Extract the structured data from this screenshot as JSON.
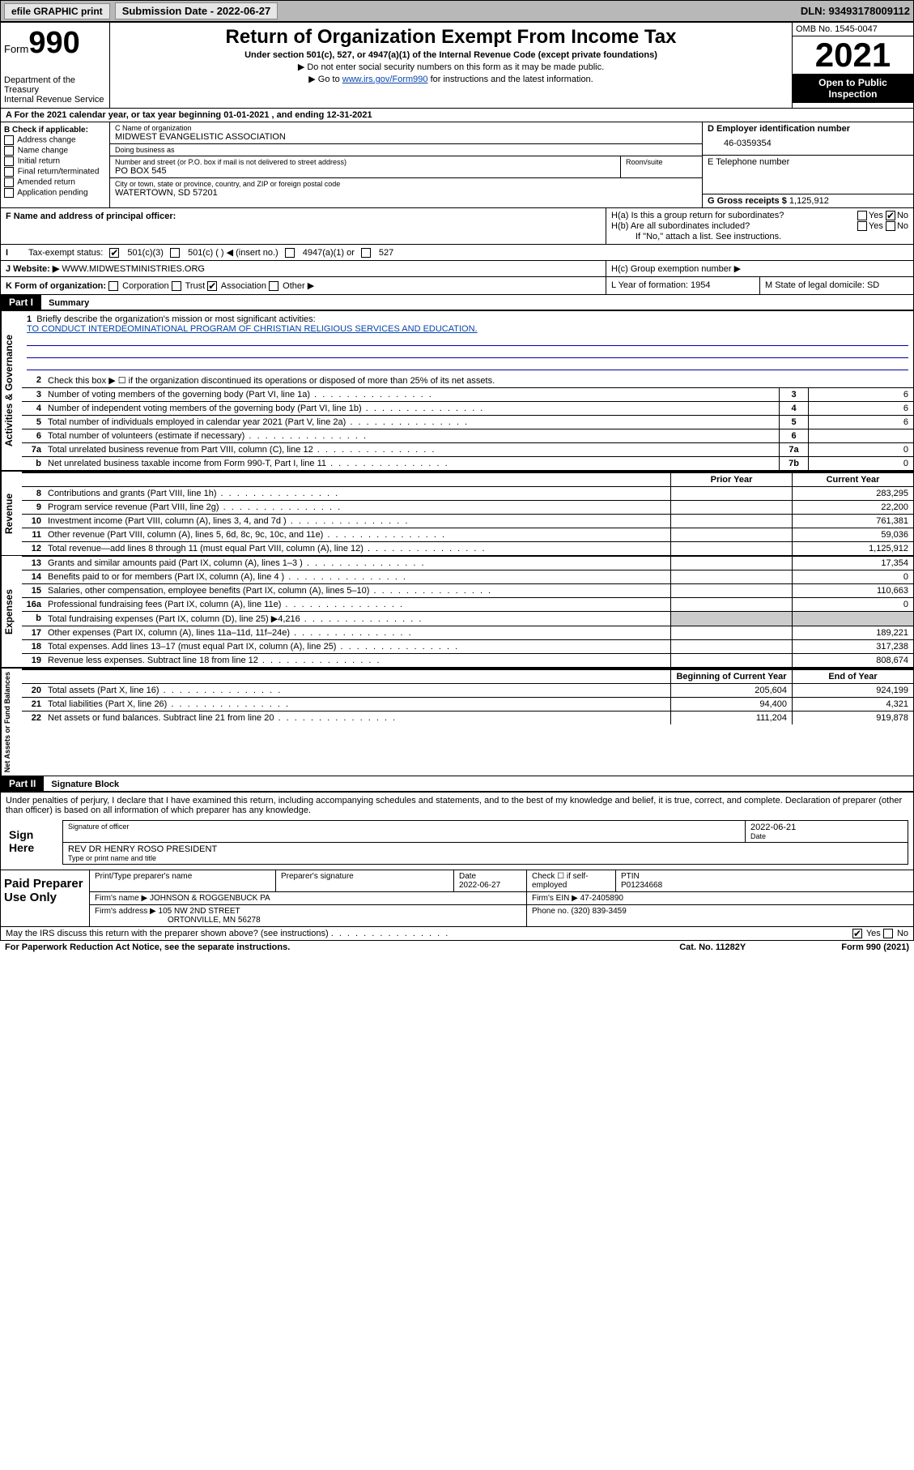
{
  "topbar": {
    "efile": "efile GRAPHIC print",
    "subdate_label": "Submission Date - 2022-06-27",
    "dln": "DLN: 93493178009112"
  },
  "header": {
    "form_label": "Form",
    "form_number": "990",
    "dept": "Department of the Treasury",
    "irs": "Internal Revenue Service",
    "title": "Return of Organization Exempt From Income Tax",
    "subtitle": "Under section 501(c), 527, or 4947(a)(1) of the Internal Revenue Code (except private foundations)",
    "note1": "▶ Do not enter social security numbers on this form as it may be made public.",
    "note2_pre": "▶ Go to ",
    "note2_link": "www.irs.gov/Form990",
    "note2_post": " for instructions and the latest information.",
    "omb": "OMB No. 1545-0047",
    "year": "2021",
    "open": "Open to Public Inspection"
  },
  "line_a": "A For the 2021 calendar year, or tax year beginning 01-01-2021   , and ending 12-31-2021",
  "col_b": {
    "title": "B Check if applicable:",
    "items": [
      "Address change",
      "Name change",
      "Initial return",
      "Final return/terminated",
      "Amended return",
      "Application pending"
    ]
  },
  "org": {
    "name_label": "C Name of organization",
    "name": "MIDWEST EVANGELISTIC ASSOCIATION",
    "dba_label": "Doing business as",
    "dba": "",
    "addr_label": "Number and street (or P.O. box if mail is not delivered to street address)",
    "addr": "PO BOX 545",
    "room_label": "Room/suite",
    "city_label": "City or town, state or province, country, and ZIP or foreign postal code",
    "city": "WATERTOWN, SD  57201"
  },
  "d": {
    "label": "D Employer identification number",
    "val": "46-0359354"
  },
  "e": {
    "label": "E Telephone number",
    "val": ""
  },
  "g": {
    "label": "G Gross receipts $",
    "val": "1,125,912"
  },
  "f": {
    "label": "F  Name and address of principal officer:",
    "val": ""
  },
  "h": {
    "a": "H(a)  Is this a group return for subordinates?",
    "b": "H(b)  Are all subordinates included?",
    "b_note": "If \"No,\" attach a list. See instructions.",
    "c": "H(c)  Group exemption number ▶",
    "yes": "Yes",
    "no": "No"
  },
  "i": {
    "label": "Tax-exempt status:",
    "opts": [
      "501(c)(3)",
      "501(c) (  ) ◀ (insert no.)",
      "4947(a)(1) or",
      "527"
    ]
  },
  "j": {
    "label": "J   Website: ▶",
    "val": "WWW.MIDWESTMINISTRIES.ORG"
  },
  "k": {
    "label": "K Form of organization:",
    "opts": [
      "Corporation",
      "Trust",
      "Association",
      "Other ▶"
    ],
    "l": "L Year of formation: 1954",
    "m": "M State of legal domicile: SD"
  },
  "parts": {
    "p1": "Part I",
    "p1_title": "Summary",
    "p2": "Part II",
    "p2_title": "Signature Block"
  },
  "vtabs": {
    "gov": "Activities & Governance",
    "rev": "Revenue",
    "exp": "Expenses",
    "net": "Net Assets or Fund Balances"
  },
  "mission": {
    "q": "Briefly describe the organization's mission or most significant activities:",
    "text": "TO CONDUCT INTERDEOMINATIONAL PROGRAM OF CHRISTIAN RELIGIOUS SERVICES AND EDUCATION."
  },
  "line2": "Check this box ▶ ☐  if the organization discontinued its operations or disposed of more than 25% of its net assets.",
  "rows_gov": [
    {
      "n": "3",
      "d": "Number of voting members of the governing body (Part VI, line 1a)",
      "c": "3",
      "v": "6"
    },
    {
      "n": "4",
      "d": "Number of independent voting members of the governing body (Part VI, line 1b)",
      "c": "4",
      "v": "6"
    },
    {
      "n": "5",
      "d": "Total number of individuals employed in calendar year 2021 (Part V, line 2a)",
      "c": "5",
      "v": "6"
    },
    {
      "n": "6",
      "d": "Total number of volunteers (estimate if necessary)",
      "c": "6",
      "v": ""
    },
    {
      "n": "7a",
      "d": "Total unrelated business revenue from Part VIII, column (C), line 12",
      "c": "7a",
      "v": "0"
    },
    {
      "n": "b",
      "d": "Net unrelated business taxable income from Form 990-T, Part I, line 11",
      "c": "7b",
      "v": "0"
    }
  ],
  "col_hdrs": {
    "prior": "Prior Year",
    "curr": "Current Year",
    "beg": "Beginning of Current Year",
    "end": "End of Year"
  },
  "rows_rev": [
    {
      "n": "8",
      "d": "Contributions and grants (Part VIII, line 1h)",
      "p": "",
      "c": "283,295"
    },
    {
      "n": "9",
      "d": "Program service revenue (Part VIII, line 2g)",
      "p": "",
      "c": "22,200"
    },
    {
      "n": "10",
      "d": "Investment income (Part VIII, column (A), lines 3, 4, and 7d )",
      "p": "",
      "c": "761,381"
    },
    {
      "n": "11",
      "d": "Other revenue (Part VIII, column (A), lines 5, 6d, 8c, 9c, 10c, and 11e)",
      "p": "",
      "c": "59,036"
    },
    {
      "n": "12",
      "d": "Total revenue—add lines 8 through 11 (must equal Part VIII, column (A), line 12)",
      "p": "",
      "c": "1,125,912"
    }
  ],
  "rows_exp": [
    {
      "n": "13",
      "d": "Grants and similar amounts paid (Part IX, column (A), lines 1–3 )",
      "p": "",
      "c": "17,354"
    },
    {
      "n": "14",
      "d": "Benefits paid to or for members (Part IX, column (A), line 4 )",
      "p": "",
      "c": "0"
    },
    {
      "n": "15",
      "d": "Salaries, other compensation, employee benefits (Part IX, column (A), lines 5–10)",
      "p": "",
      "c": "110,663"
    },
    {
      "n": "16a",
      "d": "Professional fundraising fees (Part IX, column (A), line 11e)",
      "p": "",
      "c": "0"
    },
    {
      "n": "b",
      "d": "Total fundraising expenses (Part IX, column (D), line 25) ▶4,216",
      "p": "shaded",
      "c": "shaded"
    },
    {
      "n": "17",
      "d": "Other expenses (Part IX, column (A), lines 11a–11d, 11f–24e)",
      "p": "",
      "c": "189,221"
    },
    {
      "n": "18",
      "d": "Total expenses. Add lines 13–17 (must equal Part IX, column (A), line 25)",
      "p": "",
      "c": "317,238"
    },
    {
      "n": "19",
      "d": "Revenue less expenses. Subtract line 18 from line 12",
      "p": "",
      "c": "808,674"
    }
  ],
  "rows_net": [
    {
      "n": "20",
      "d": "Total assets (Part X, line 16)",
      "p": "205,604",
      "c": "924,199"
    },
    {
      "n": "21",
      "d": "Total liabilities (Part X, line 26)",
      "p": "94,400",
      "c": "4,321"
    },
    {
      "n": "22",
      "d": "Net assets or fund balances. Subtract line 21 from line 20",
      "p": "111,204",
      "c": "919,878"
    }
  ],
  "sig": {
    "penalties": "Under penalties of perjury, I declare that I have examined this return, including accompanying schedules and statements, and to the best of my knowledge and belief, it is true, correct, and complete. Declaration of preparer (other than officer) is based on all information of which preparer has any knowledge.",
    "sign_here": "Sign Here",
    "sig_officer": "Signature of officer",
    "date": "2022-06-21",
    "date_lbl": "Date",
    "name": "REV DR HENRY ROSO  PRESIDENT",
    "name_lbl": "Type or print name and title"
  },
  "paid": {
    "title": "Paid Preparer Use Only",
    "h1": "Print/Type preparer's name",
    "h2": "Preparer's signature",
    "h3": "Date",
    "h3v": "2022-06-27",
    "h4": "Check ☐ if self-employed",
    "h5": "PTIN",
    "h5v": "P01234668",
    "firm_name_lbl": "Firm's name    ▶",
    "firm_name": "JOHNSON & ROGGENBUCK PA",
    "firm_ein_lbl": "Firm's EIN ▶",
    "firm_ein": "47-2405890",
    "firm_addr_lbl": "Firm's address ▶",
    "firm_addr1": "105 NW 2ND STREET",
    "firm_addr2": "ORTONVILLE, MN  56278",
    "phone_lbl": "Phone no.",
    "phone": "(320) 839-3459"
  },
  "may_discuss": "May the IRS discuss this return with the preparer shown above? (see instructions)",
  "footer": {
    "pra": "For Paperwork Reduction Act Notice, see the separate instructions.",
    "cat": "Cat. No. 11282Y",
    "form": "Form 990 (2021)"
  }
}
